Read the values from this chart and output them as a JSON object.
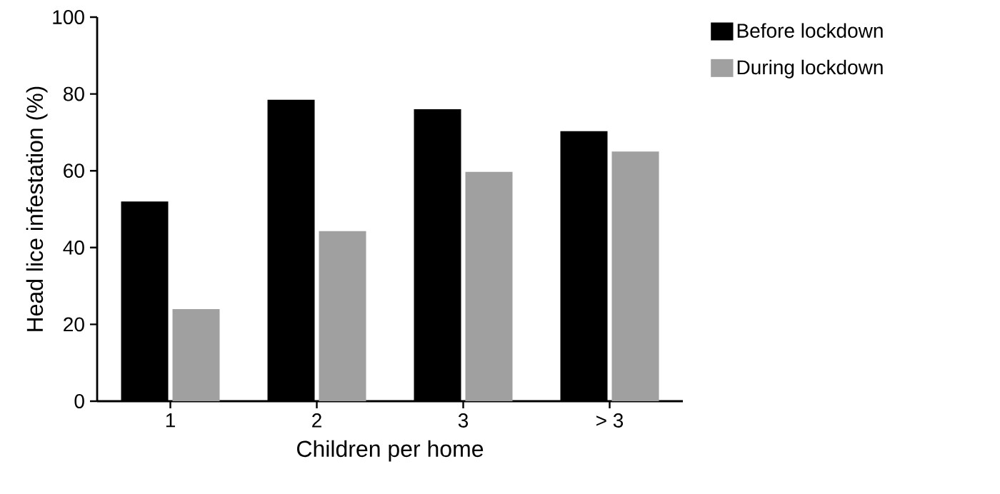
{
  "chart_data": {
    "type": "bar",
    "xlabel": "Children per home",
    "ylabel": "Head lice infestation (%)",
    "categories": [
      "1",
      "2",
      "3",
      "> 3"
    ],
    "series": [
      {
        "name": "Before lockdown",
        "color": "#000000",
        "values": [
          52,
          78.5,
          76,
          70.3
        ]
      },
      {
        "name": "During lockdown",
        "color": "#a0a0a0",
        "values": [
          24,
          44.3,
          59.7,
          65
        ]
      }
    ],
    "ylim": [
      0,
      100
    ],
    "yticks": [
      0,
      20,
      40,
      60,
      80,
      100
    ],
    "legend": "top right"
  }
}
